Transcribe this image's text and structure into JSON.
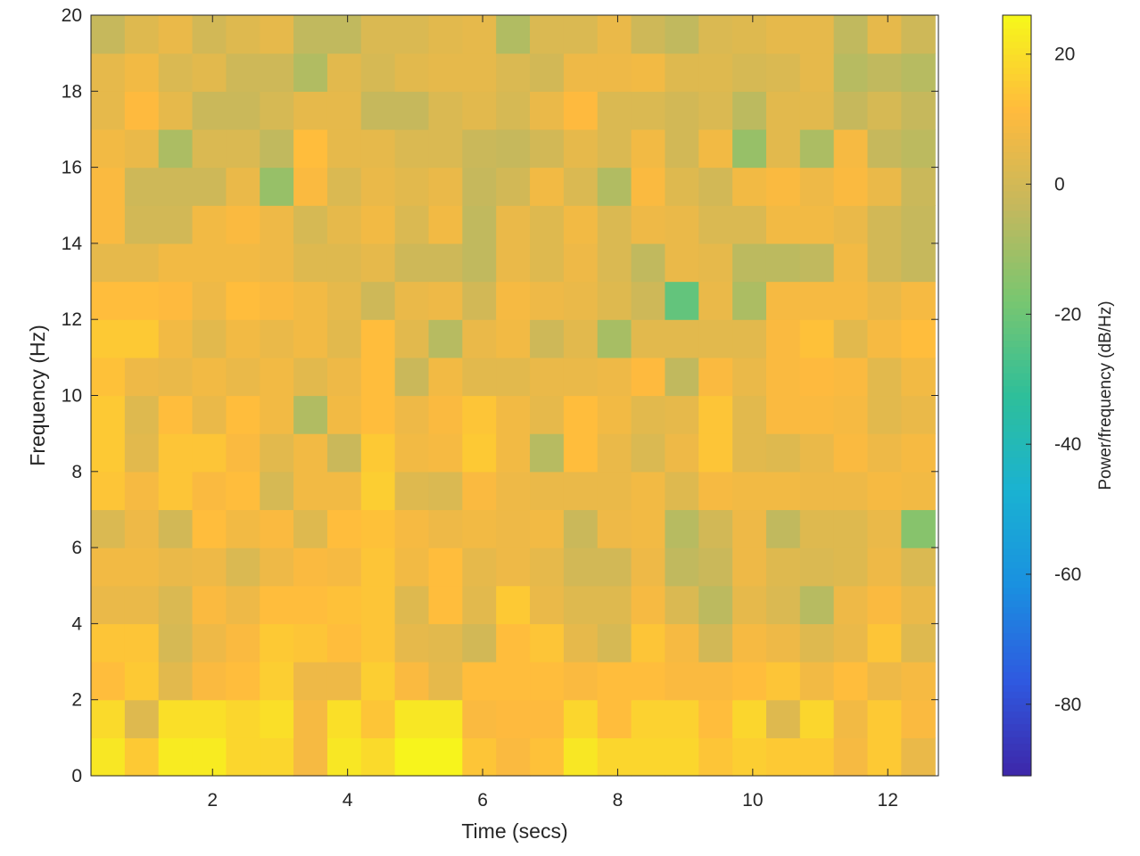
{
  "chart_data": {
    "type": "heatmap",
    "xlabel": "Time (secs)",
    "ylabel": "Frequency (Hz)",
    "xlim": [
      0.2,
      12.75
    ],
    "ylim": [
      0,
      20
    ],
    "x_ticks": [
      2,
      4,
      6,
      8,
      10,
      12
    ],
    "y_ticks": [
      0,
      2,
      4,
      6,
      8,
      10,
      12,
      14,
      16,
      18,
      20
    ],
    "x_start": 0.2,
    "x_step": 0.5,
    "y_step": 1,
    "colorbar": {
      "label": "Power/frequency (dB/Hz)",
      "range": [
        -91,
        26
      ],
      "ticks": [
        -80,
        -60,
        -40,
        -20,
        0,
        20
      ],
      "colormap": [
        "#3e26a8",
        "#2f59e0",
        "#1a90e0",
        "#1ab2d2",
        "#2ebf9a",
        "#78c670",
        "#c5b85d",
        "#ffba3d",
        "#f6f81a"
      ]
    },
    "rows_low_to_high_freq": [
      [
        22,
        15,
        23,
        23,
        18,
        18,
        9,
        22,
        19,
        25,
        25,
        14,
        10,
        13,
        22,
        18,
        18,
        18,
        14,
        16,
        15,
        15,
        9,
        15,
        6
      ],
      [
        19,
        3,
        20,
        20,
        18,
        20,
        9,
        20,
        14,
        22,
        22,
        10,
        11,
        11,
        18,
        12,
        17,
        17,
        12,
        18,
        3,
        18,
        8,
        15,
        10
      ],
      [
        12,
        15,
        4,
        10,
        12,
        16,
        7,
        7,
        16,
        10,
        5,
        12,
        12,
        12,
        10,
        12,
        12,
        10,
        10,
        12,
        14,
        8,
        12,
        7,
        9
      ],
      [
        14,
        14,
        1,
        7,
        10,
        15,
        14,
        12,
        14,
        5,
        4,
        0,
        12,
        14,
        5,
        1,
        14,
        9,
        0,
        9,
        7,
        3,
        6,
        14,
        3
      ],
      [
        6,
        6,
        2,
        10,
        7,
        12,
        12,
        13,
        14,
        3,
        12,
        4,
        15,
        6,
        3,
        3,
        9,
        2,
        -5,
        5,
        2,
        -6,
        7,
        10,
        6
      ],
      [
        8,
        8,
        6,
        7,
        2,
        7,
        10,
        9,
        14,
        8,
        12,
        5,
        7,
        5,
        0,
        0,
        7,
        -4,
        -2,
        7,
        3,
        2,
        3,
        7,
        2
      ],
      [
        2,
        7,
        0,
        12,
        8,
        10,
        3,
        12,
        13,
        9,
        7,
        8,
        7,
        8,
        -2,
        7,
        8,
        -6,
        0,
        7,
        -4,
        3,
        3,
        6,
        -15
      ],
      [
        14,
        9,
        14,
        10,
        12,
        1,
        8,
        8,
        16,
        3,
        2,
        10,
        7,
        6,
        6,
        6,
        8,
        3,
        9,
        8,
        8,
        7,
        7,
        9,
        8
      ],
      [
        15,
        4,
        14,
        14,
        10,
        4,
        8,
        -2,
        15,
        8,
        9,
        15,
        8,
        -6,
        12,
        6,
        2,
        7,
        14,
        4,
        3,
        6,
        10,
        7,
        9
      ],
      [
        15,
        3,
        12,
        6,
        12,
        8,
        -7,
        8,
        12,
        7,
        10,
        14,
        8,
        5,
        12,
        8,
        4,
        5,
        14,
        4,
        10,
        10,
        9,
        4,
        6
      ],
      [
        13,
        7,
        6,
        8,
        6,
        8,
        4,
        7,
        12,
        -2,
        8,
        4,
        4,
        6,
        6,
        7,
        11,
        -4,
        10,
        6,
        10,
        11,
        10,
        4,
        8
      ],
      [
        15,
        15,
        8,
        4,
        8,
        6,
        8,
        4,
        12,
        4,
        -6,
        6,
        8,
        -1,
        4,
        -9,
        4,
        4,
        4,
        4,
        10,
        13,
        4,
        9,
        12
      ],
      [
        12,
        12,
        11,
        7,
        12,
        10,
        8,
        5,
        -1,
        6,
        7,
        0,
        9,
        7,
        6,
        3,
        -1,
        -22,
        6,
        -8,
        9,
        9,
        9,
        6,
        9
      ],
      [
        5,
        5,
        8,
        8,
        8,
        7,
        3,
        3,
        5,
        -1,
        -1,
        -4,
        6,
        3,
        7,
        2,
        -4,
        6,
        5,
        -5,
        -5,
        -4,
        8,
        0,
        -3
      ],
      [
        10,
        0,
        0,
        8,
        10,
        7,
        1,
        5,
        8,
        2,
        8,
        -4,
        6,
        3,
        8,
        2,
        7,
        6,
        2,
        2,
        8,
        8,
        6,
        0,
        -3
      ],
      [
        10,
        -1,
        -1,
        -1,
        6,
        -12,
        10,
        2,
        6,
        4,
        6,
        -3,
        0,
        8,
        2,
        -7,
        10,
        3,
        0,
        8,
        10,
        7,
        10,
        6,
        -2
      ],
      [
        8,
        6,
        -8,
        2,
        2,
        -4,
        12,
        5,
        5,
        2,
        2,
        -2,
        -3,
        0,
        5,
        2,
        8,
        0,
        8,
        -12,
        4,
        -8,
        9,
        -3,
        -5
      ],
      [
        5,
        11,
        5,
        -2,
        -2,
        1,
        5,
        5,
        -3,
        -3,
        2,
        4,
        1,
        6,
        11,
        2,
        2,
        0,
        2,
        -5,
        4,
        4,
        -3,
        1,
        -3
      ],
      [
        5,
        8,
        2,
        4,
        -1,
        -1,
        -7,
        4,
        1,
        4,
        5,
        5,
        2,
        0,
        7,
        7,
        8,
        3,
        3,
        1,
        2,
        5,
        -6,
        -4,
        -6
      ],
      [
        -3,
        3,
        6,
        0,
        3,
        5,
        -4,
        -4,
        2,
        2,
        4,
        5,
        -7,
        2,
        2,
        6,
        -1,
        -4,
        2,
        3,
        5,
        5,
        -4,
        5,
        -1
      ]
    ]
  }
}
